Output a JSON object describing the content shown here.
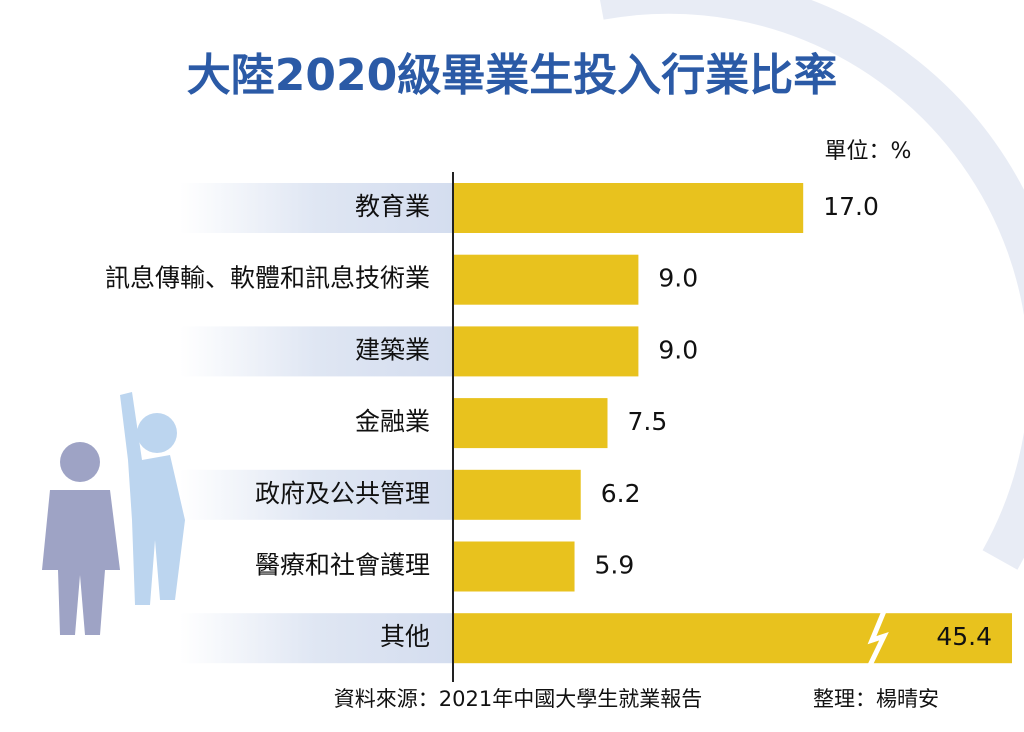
{
  "chart_data": {
    "type": "bar",
    "orientation": "horizontal",
    "title": "大陸2020級畢業生投入行業比率",
    "unit": "單位：%",
    "categories": [
      "教育業",
      "訊息傳輸、軟體和訊息技術業",
      "建築業",
      "金融業",
      "政府及公共管理",
      "醫療和社會護理",
      "其他"
    ],
    "values": [
      17.0,
      9.0,
      9.0,
      7.5,
      6.2,
      5.9,
      45.4
    ],
    "value_labels": [
      "17.0",
      "9.0",
      "9.0",
      "7.5",
      "6.2",
      "5.9",
      "45.4"
    ],
    "color": "#e8c21e",
    "source": "資料來源：2021年中國大學生就業報告",
    "credit": "整理：楊晴安"
  }
}
